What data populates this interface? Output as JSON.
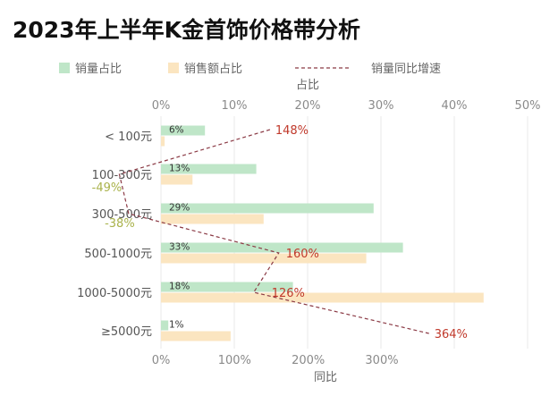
{
  "chart_data": {
    "type": "bar",
    "orientation": "horizontal",
    "title": "2023年上半年K金首饰价格带分析",
    "categories": [
      "< 100元",
      "100-300元",
      "300-500元",
      "500-1000元",
      "1000-5000元",
      "≥5000元"
    ],
    "series": [
      {
        "name": "销量占比",
        "axis": "top",
        "values": [
          6,
          13,
          29,
          33,
          18,
          1
        ],
        "labels": [
          "6%",
          "13%",
          "29%",
          "33%",
          "18%",
          "1%"
        ],
        "color": "#bfe6c8"
      },
      {
        "name": "销售额占比",
        "axis": "top",
        "values": [
          0.5,
          4.3,
          14,
          28,
          44,
          9.5
        ],
        "color": "#fbe5c0"
      },
      {
        "name": "销量同比增速",
        "axis": "bottom",
        "type": "line",
        "values": [
          148,
          -49,
          -38,
          160,
          126,
          364
        ],
        "labels": [
          "148%",
          "-49%",
          "-38%",
          "160%",
          "126%",
          "364%"
        ],
        "color": "#8b3a45"
      }
    ],
    "top_axis": {
      "label": "占比",
      "min": 0,
      "max": 50,
      "ticks": [
        "0%",
        "10%",
        "20%",
        "30%",
        "40%",
        "50%"
      ]
    },
    "bottom_axis": {
      "label": "同比",
      "min": 0,
      "max": 300,
      "ticks": [
        "0%",
        "100%",
        "200%",
        "300%"
      ]
    },
    "legend": {
      "placement": "top",
      "items": [
        "销量占比",
        "销售额占比",
        "销量同比增速"
      ]
    },
    "grid": true,
    "colors": {
      "positive_label": "#c0392b",
      "negative_label": "#a9b24a",
      "grid": "#e8e8e8",
      "line": "#8b3a45"
    }
  }
}
